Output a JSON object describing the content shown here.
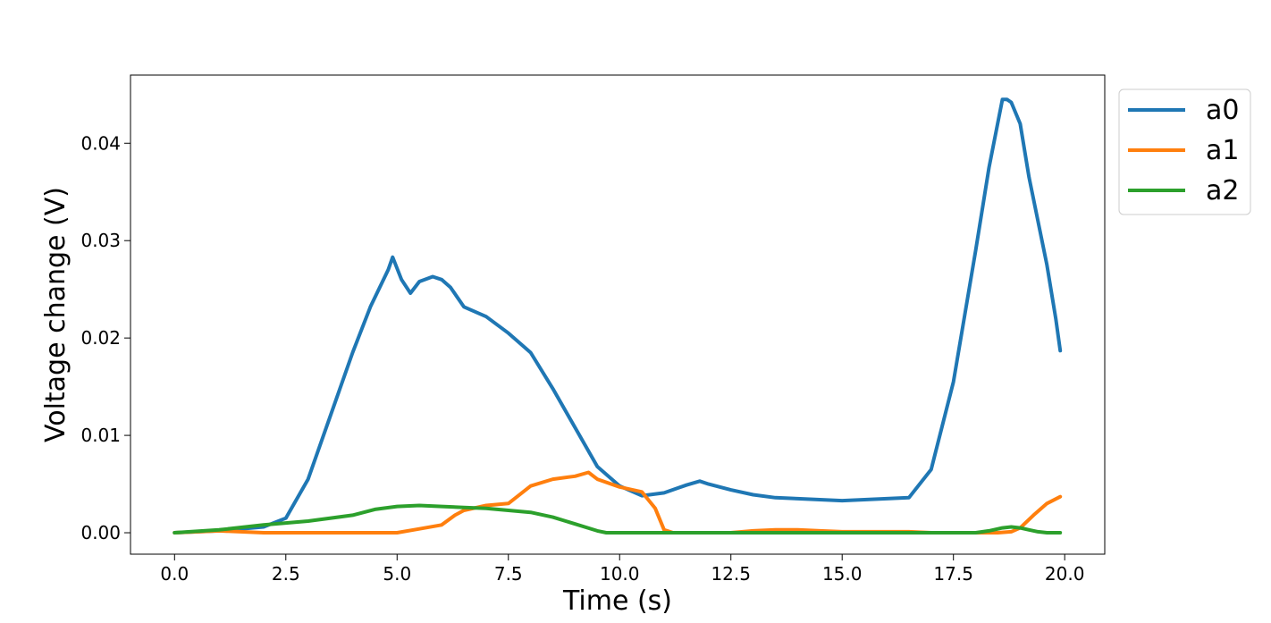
{
  "chart_data": {
    "type": "line",
    "title": "",
    "xlabel": "Time (s)",
    "ylabel": "Voltage change (V)",
    "xlim": [
      -0.99,
      20.9
    ],
    "ylim": [
      -0.0022,
      0.047
    ],
    "xticks": [
      0.0,
      2.5,
      5.0,
      7.5,
      10.0,
      12.5,
      15.0,
      17.5,
      20.0
    ],
    "xtick_labels": [
      "0.0",
      "2.5",
      "5.0",
      "7.5",
      "10.0",
      "12.5",
      "15.0",
      "17.5",
      "20.0"
    ],
    "yticks": [
      0.0,
      0.01,
      0.02,
      0.03,
      0.04
    ],
    "ytick_labels": [
      "0.00",
      "0.01",
      "0.02",
      "0.03",
      "0.04"
    ],
    "grid": false,
    "legend_position": "outside top-right",
    "series": [
      {
        "name": "a0",
        "color": "#1f77b4",
        "x": [
          0.0,
          1.0,
          2.0,
          2.5,
          3.0,
          3.5,
          4.0,
          4.4,
          4.8,
          4.9,
          5.1,
          5.3,
          5.5,
          5.8,
          6.0,
          6.2,
          6.5,
          7.0,
          7.5,
          8.0,
          8.5,
          9.0,
          9.5,
          10.0,
          10.5,
          11.0,
          11.5,
          11.8,
          12.0,
          12.5,
          13.0,
          13.5,
          14.0,
          15.0,
          15.5,
          16.0,
          16.5,
          17.0,
          17.5,
          18.0,
          18.3,
          18.6,
          18.7,
          18.8,
          19.0,
          19.2,
          19.4,
          19.6,
          19.8,
          19.9
        ],
        "y": [
          0.0,
          0.0002,
          0.0006,
          0.0015,
          0.0055,
          0.012,
          0.0185,
          0.0232,
          0.027,
          0.0283,
          0.026,
          0.0246,
          0.0258,
          0.0263,
          0.026,
          0.0252,
          0.0232,
          0.0222,
          0.0205,
          0.0185,
          0.0148,
          0.0108,
          0.0068,
          0.0048,
          0.0038,
          0.0041,
          0.0049,
          0.0053,
          0.005,
          0.0044,
          0.0039,
          0.0036,
          0.0035,
          0.0033,
          0.0034,
          0.0035,
          0.0036,
          0.0065,
          0.0155,
          0.029,
          0.0375,
          0.0445,
          0.0445,
          0.0442,
          0.042,
          0.0365,
          0.032,
          0.0275,
          0.022,
          0.0187
        ]
      },
      {
        "name": "a1",
        "color": "#ff7f0e",
        "x": [
          0.0,
          1.0,
          2.0,
          3.0,
          4.0,
          5.0,
          5.5,
          6.0,
          6.3,
          6.5,
          7.0,
          7.5,
          8.0,
          8.5,
          9.0,
          9.3,
          9.5,
          10.0,
          10.5,
          10.8,
          11.0,
          11.2,
          12.5,
          13.0,
          13.5,
          14.0,
          14.5,
          15.0,
          16.0,
          16.5,
          17.0,
          18.0,
          18.5,
          18.8,
          19.0,
          19.3,
          19.6,
          19.9
        ],
        "y": [
          0.0,
          0.0002,
          0.0,
          0.0,
          0.0,
          0.0,
          0.0004,
          0.0008,
          0.0018,
          0.0023,
          0.0028,
          0.003,
          0.0048,
          0.0055,
          0.0058,
          0.0062,
          0.0055,
          0.0047,
          0.0042,
          0.0025,
          0.0003,
          0.0,
          0.0,
          0.0002,
          0.0003,
          0.0003,
          0.0002,
          0.0001,
          0.0001,
          0.0001,
          0.0,
          0.0,
          0.0,
          0.0001,
          0.0005,
          0.0018,
          0.003,
          0.0037
        ]
      },
      {
        "name": "a2",
        "color": "#2ca02c",
        "x": [
          0.0,
          1.0,
          2.0,
          3.0,
          4.0,
          4.5,
          5.0,
          5.5,
          6.0,
          6.5,
          7.0,
          7.5,
          8.0,
          8.5,
          9.0,
          9.5,
          9.7,
          10.0,
          12.0,
          15.0,
          18.0,
          18.3,
          18.6,
          18.8,
          19.0,
          19.2,
          19.4,
          19.6,
          19.9
        ],
        "y": [
          0.0,
          0.0003,
          0.0008,
          0.0012,
          0.0018,
          0.0024,
          0.0027,
          0.0028,
          0.0027,
          0.0026,
          0.0025,
          0.0023,
          0.0021,
          0.0016,
          0.0009,
          0.0002,
          0.0,
          0.0,
          0.0,
          0.0,
          0.0,
          0.0002,
          0.0005,
          0.0006,
          0.0005,
          0.0003,
          0.0001,
          0.0,
          0.0
        ]
      }
    ]
  }
}
